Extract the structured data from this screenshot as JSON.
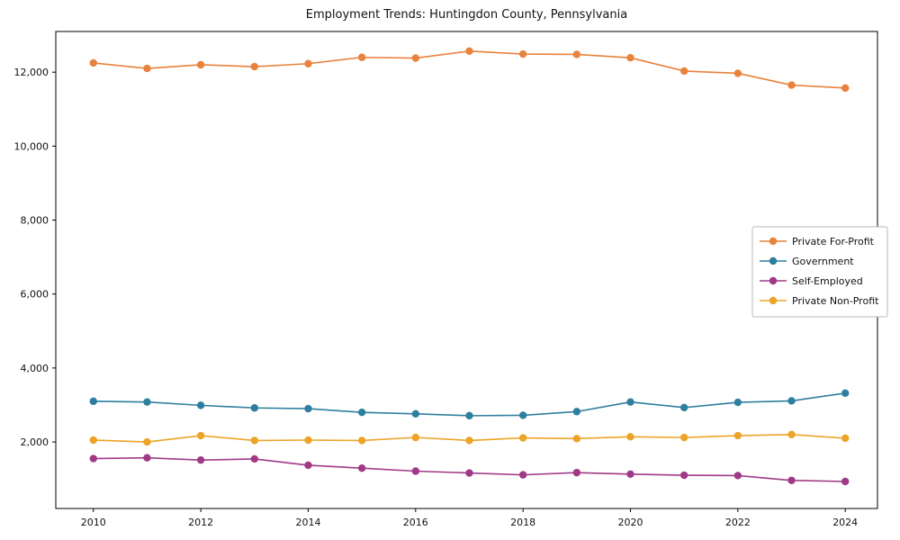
{
  "title": "Employment Trends: Huntingdon County, Pennsylvania",
  "chart_data": {
    "type": "line",
    "x": [
      2010,
      2011,
      2012,
      2013,
      2014,
      2015,
      2016,
      2017,
      2018,
      2019,
      2020,
      2021,
      2022,
      2023,
      2024
    ],
    "series": [
      {
        "name": "Private For-Profit",
        "color": "#e8823c",
        "values": [
          12250,
          12100,
          12200,
          12150,
          12230,
          12400,
          12380,
          12570,
          12490,
          12480,
          12390,
          12030,
          11970,
          11650,
          11570
        ]
      },
      {
        "name": "Government",
        "color": "#2e7f9f",
        "values": [
          3100,
          3080,
          2990,
          2920,
          2900,
          2800,
          2760,
          2710,
          2720,
          2820,
          3080,
          2930,
          3070,
          3110,
          3320
        ]
      },
      {
        "name": "Self-Employed",
        "color": "#a03a87",
        "values": [
          1550,
          1570,
          1510,
          1540,
          1370,
          1290,
          1210,
          1160,
          1110,
          1170,
          1130,
          1100,
          1090,
          960,
          930
        ]
      },
      {
        "name": "Private Non-Profit",
        "color": "#eca428",
        "values": [
          2050,
          2000,
          2170,
          2040,
          2050,
          2040,
          2120,
          2040,
          2110,
          2090,
          2140,
          2120,
          2170,
          2200,
          2100
        ]
      }
    ],
    "xticks": [
      2010,
      2012,
      2014,
      2016,
      2018,
      2020,
      2022,
      2024
    ],
    "yticks": [
      2000,
      4000,
      6000,
      8000,
      10000,
      12000
    ],
    "xlim": [
      2009.3,
      2024.6
    ],
    "ylim": [
      200,
      13100
    ],
    "grid": false,
    "legend_position": "center right",
    "axis_color": "#000000",
    "tick_label_color": "#111111",
    "legend_edge_color": "#b9b9b9"
  }
}
